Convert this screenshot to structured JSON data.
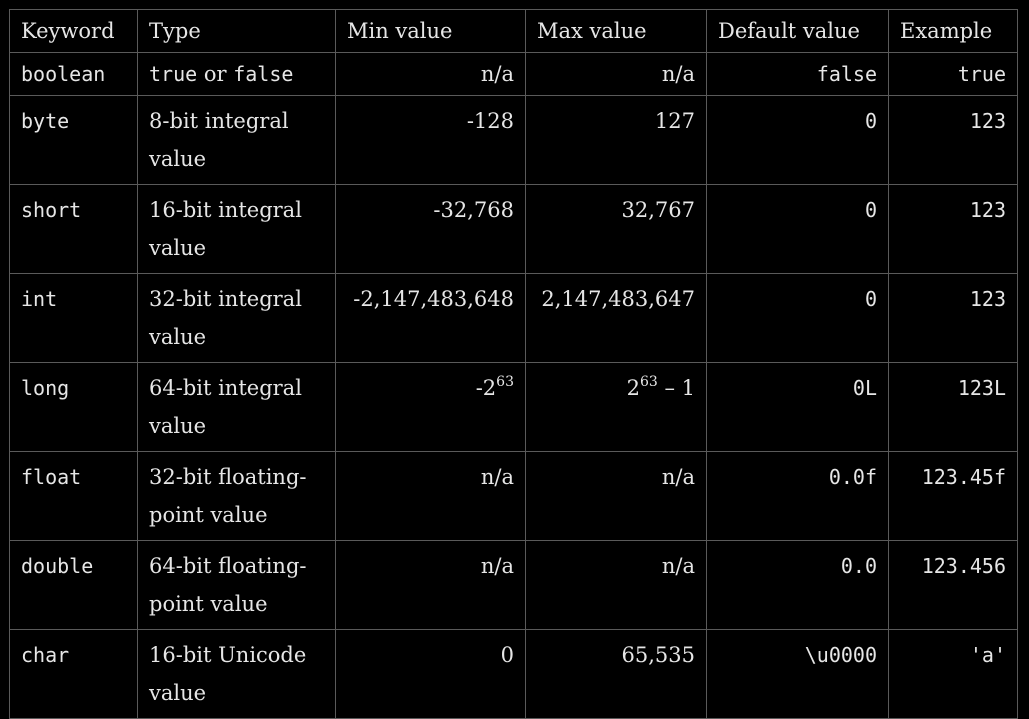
{
  "headers": [
    "Keyword",
    "Type",
    "Min value",
    "Max value",
    "Default value",
    "Example"
  ],
  "rows": [
    {
      "keyword": "boolean",
      "type_a": "true",
      "type_or": " or ",
      "type_b": "false",
      "min": "n/a",
      "max": "n/a",
      "default": "false",
      "example": "true"
    },
    {
      "keyword": "byte",
      "type": "8-bit integral value",
      "min": "-128",
      "max": "127",
      "default": "0",
      "example": "123"
    },
    {
      "keyword": "short",
      "type": "16-bit integral value",
      "min": "-32,768",
      "max": "32,767",
      "default": "0",
      "example": "123"
    },
    {
      "keyword": "int",
      "type": "32-bit integral value",
      "min": "-2,147,483,648",
      "max": "2,147,483,647",
      "default": "0",
      "example": "123"
    },
    {
      "keyword": "long",
      "type": "64-bit integral value",
      "min_base": "-2",
      "min_exp": "63",
      "max_base": "2",
      "max_exp": "63",
      "max_rest": " – 1",
      "default": "0L",
      "example": "123L"
    },
    {
      "keyword": "float",
      "type": "32-bit floating-point value",
      "min": "n/a",
      "max": "n/a",
      "default": "0.0f",
      "example": "123.45f"
    },
    {
      "keyword": "double",
      "type": "64-bit floating-point value",
      "min": "n/a",
      "max": "n/a",
      "default": "0.0",
      "example": "123.456"
    },
    {
      "keyword": "char",
      "type": "16-bit Unicode value",
      "min": "0",
      "max": "65,535",
      "default": "\\u0000",
      "example": "'a'"
    }
  ]
}
